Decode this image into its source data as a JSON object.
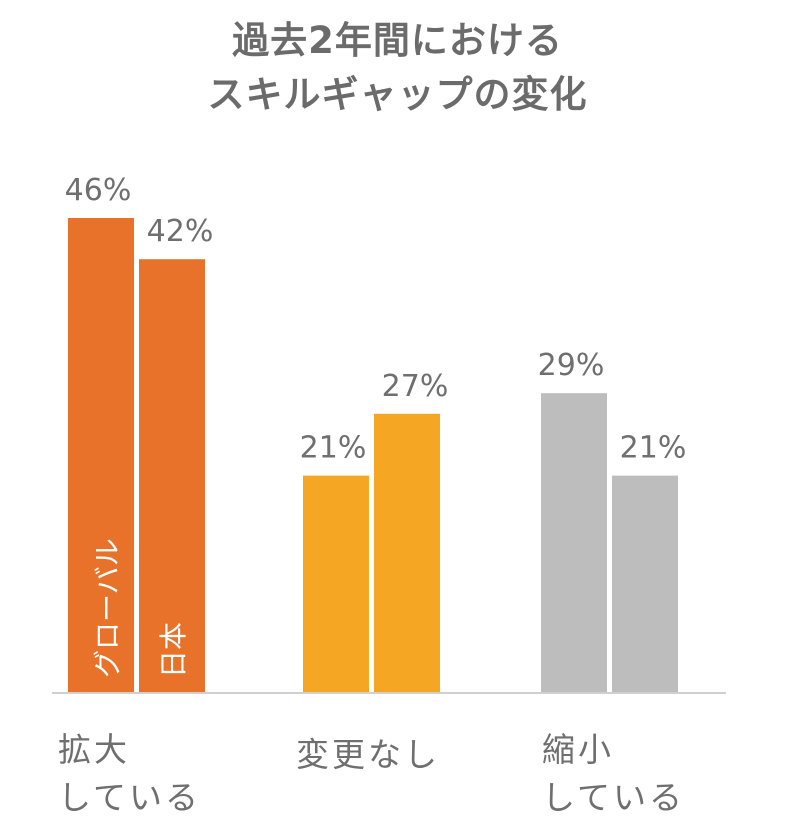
{
  "chart_data": {
    "type": "bar",
    "title": [
      "過去2年間における",
      "スキルギャップの変化"
    ],
    "categories": [
      [
        "拡大",
        "している"
      ],
      [
        "変更なし"
      ],
      [
        "縮小",
        "している"
      ]
    ],
    "series": [
      {
        "name": "グローバル",
        "values": [
          46,
          21,
          29
        ]
      },
      {
        "name": "日本",
        "values": [
          42,
          27,
          21
        ]
      }
    ],
    "value_labels": [
      [
        "46%",
        "21%",
        "29%"
      ],
      [
        "42%",
        "27%",
        "21%"
      ]
    ],
    "bar_colors": [
      "#e8722a",
      "#f5a623",
      "#bdbdbd"
    ],
    "ylim": [
      0,
      46
    ],
    "grid": false,
    "legend": "inside first bar pair (vertical text)"
  }
}
